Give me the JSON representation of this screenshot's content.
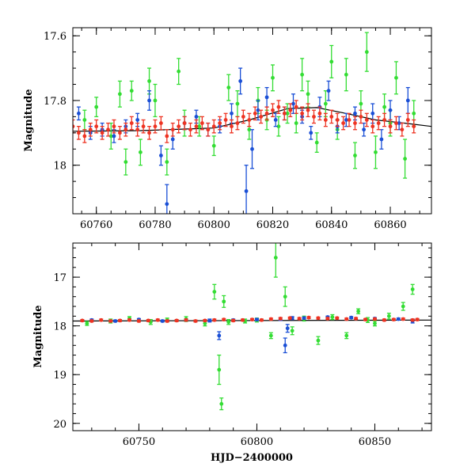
{
  "chart_data": [
    {
      "type": "scatter",
      "panel": "top",
      "xlabel": "",
      "ylabel": "Magnitude",
      "xlim": [
        60752,
        60874
      ],
      "ylim": [
        18.15,
        17.575
      ],
      "y_inverted": true,
      "xticks_major": [
        60760,
        60780,
        60800,
        60820,
        60840,
        60860
      ],
      "xtick_labels": [
        "60760",
        "60780",
        "60800",
        "60820",
        "60840",
        "60860"
      ],
      "yticks_major": [
        17.6,
        17.8,
        18.0
      ],
      "ytick_labels": [
        "17.6",
        "17.8",
        "18"
      ],
      "error_bars": true,
      "grid": false,
      "legend": "none",
      "trend_line": {
        "color": "#000000",
        "x": [
          60752,
          60775,
          60800,
          60812,
          60825,
          60835,
          60845,
          60855,
          60865,
          60874
        ],
        "y": [
          17.895,
          17.893,
          17.885,
          17.86,
          17.825,
          17.822,
          17.84,
          17.86,
          17.87,
          17.88
        ]
      },
      "series": [
        {
          "color": "#33dd33",
          "x": [
            60756,
            60760,
            60765,
            60768,
            60770,
            60772,
            60775,
            60778,
            60780,
            60784,
            60788,
            60790,
            60795,
            60800,
            60805,
            60808,
            60812,
            60815,
            60818,
            60820,
            60822,
            60825,
            60828,
            60830,
            60832,
            60835,
            60838,
            60840,
            60842,
            60845,
            60848,
            60850,
            60852,
            60855,
            60858,
            60860,
            60862,
            60865,
            60868
          ],
          "y": [
            17.86,
            17.82,
            17.91,
            17.78,
            17.99,
            17.77,
            17.96,
            17.74,
            17.8,
            17.99,
            17.71,
            17.87,
            17.88,
            17.94,
            17.76,
            17.81,
            17.89,
            17.8,
            17.86,
            17.73,
            17.88,
            17.84,
            17.87,
            17.72,
            17.78,
            17.93,
            17.81,
            17.68,
            17.89,
            17.72,
            17.97,
            17.81,
            17.65,
            17.96,
            17.82,
            17.87,
            17.73,
            17.98,
            17.84
          ],
          "err": [
            0.03,
            0.03,
            0.04,
            0.04,
            0.04,
            0.03,
            0.04,
            0.04,
            0.05,
            0.04,
            0.04,
            0.04,
            0.03,
            0.03,
            0.04,
            0.04,
            0.03,
            0.04,
            0.03,
            0.04,
            0.03,
            0.03,
            0.03,
            0.05,
            0.04,
            0.03,
            0.04,
            0.05,
            0.03,
            0.05,
            0.04,
            0.04,
            0.06,
            0.05,
            0.04,
            0.04,
            0.05,
            0.06,
            0.04
          ]
        },
        {
          "color": "#1a4fd6",
          "x": [
            60754,
            60758,
            60762,
            60766,
            60770,
            60774,
            60778,
            60782,
            60784,
            60786,
            60790,
            60794,
            60798,
            60802,
            60806,
            60809,
            60811,
            60813,
            60815,
            60818,
            60821,
            60824,
            60827,
            60830,
            60833,
            60836,
            60839,
            60842,
            60845,
            60848,
            60851,
            60854,
            60857,
            60860,
            60863,
            60866
          ],
          "y": [
            17.84,
            17.9,
            17.89,
            17.91,
            17.88,
            17.86,
            17.8,
            17.97,
            18.12,
            17.92,
            17.87,
            17.85,
            17.89,
            17.88,
            17.84,
            17.74,
            18.08,
            17.95,
            17.83,
            17.79,
            17.86,
            17.84,
            17.81,
            17.85,
            17.9,
            17.82,
            17.77,
            17.88,
            17.86,
            17.84,
            17.89,
            17.84,
            17.92,
            17.83,
            17.87,
            17.8
          ],
          "err": [
            0.02,
            0.02,
            0.02,
            0.02,
            0.02,
            0.02,
            0.03,
            0.03,
            0.06,
            0.03,
            0.02,
            0.02,
            0.02,
            0.02,
            0.03,
            0.04,
            0.08,
            0.06,
            0.03,
            0.03,
            0.02,
            0.02,
            0.03,
            0.02,
            0.02,
            0.03,
            0.03,
            0.02,
            0.02,
            0.02,
            0.02,
            0.03,
            0.03,
            0.03,
            0.02,
            0.04
          ]
        },
        {
          "color": "#ee3322",
          "x": [
            60752,
            60754,
            60756,
            60758,
            60760,
            60762,
            60764,
            60766,
            60768,
            60770,
            60772,
            60774,
            60776,
            60778,
            60780,
            60782,
            60784,
            60786,
            60788,
            60790,
            60792,
            60794,
            60796,
            60798,
            60800,
            60802,
            60804,
            60806,
            60808,
            60810,
            60812,
            60814,
            60816,
            60818,
            60820,
            60822,
            60824,
            60826,
            60828,
            60830,
            60832,
            60834,
            60836,
            60838,
            60840,
            60842,
            60844,
            60846,
            60848,
            60850,
            60852,
            60854,
            60856,
            60858,
            60860,
            60862,
            60864,
            60866,
            60868
          ],
          "y": [
            17.88,
            17.9,
            17.91,
            17.89,
            17.88,
            17.9,
            17.89,
            17.88,
            17.9,
            17.89,
            17.87,
            17.89,
            17.88,
            17.9,
            17.88,
            17.87,
            17.91,
            17.89,
            17.88,
            17.87,
            17.89,
            17.88,
            17.87,
            17.89,
            17.88,
            17.87,
            17.86,
            17.88,
            17.87,
            17.85,
            17.86,
            17.84,
            17.85,
            17.84,
            17.83,
            17.82,
            17.84,
            17.83,
            17.82,
            17.84,
            17.83,
            17.85,
            17.84,
            17.86,
            17.85,
            17.86,
            17.87,
            17.86,
            17.87,
            17.85,
            17.86,
            17.88,
            17.87,
            17.86,
            17.88,
            17.87,
            17.89,
            17.86,
            17.88
          ],
          "err": [
            0.02,
            0.02,
            0.02,
            0.02,
            0.02,
            0.02,
            0.02,
            0.02,
            0.02,
            0.02,
            0.02,
            0.02,
            0.02,
            0.02,
            0.02,
            0.02,
            0.02,
            0.02,
            0.02,
            0.02,
            0.02,
            0.02,
            0.02,
            0.02,
            0.02,
            0.02,
            0.02,
            0.02,
            0.02,
            0.02,
            0.02,
            0.02,
            0.02,
            0.02,
            0.02,
            0.02,
            0.02,
            0.02,
            0.02,
            0.02,
            0.02,
            0.02,
            0.02,
            0.02,
            0.02,
            0.02,
            0.02,
            0.02,
            0.02,
            0.02,
            0.02,
            0.02,
            0.02,
            0.02,
            0.02,
            0.02,
            0.02,
            0.02,
            0.02
          ]
        }
      ]
    },
    {
      "type": "scatter",
      "panel": "bottom",
      "xlabel": "HJD−2400000",
      "ylabel": "Magnitude",
      "xlim": [
        60722,
        60874
      ],
      "ylim": [
        20.15,
        16.3
      ],
      "y_inverted": true,
      "xticks_major": [
        60750,
        60800,
        60850
      ],
      "xtick_labels": [
        "60750",
        "60800",
        "60850"
      ],
      "yticks_major": [
        17,
        18,
        19,
        20
      ],
      "ytick_labels": [
        "17",
        "18",
        "19",
        "20"
      ],
      "error_bars": true,
      "grid": false,
      "legend": "none",
      "trend_line": {
        "color": "#000000",
        "x": [
          60722,
          60874
        ],
        "y": [
          17.9,
          17.88
        ]
      },
      "series": [
        {
          "color": "#33dd33",
          "x": [
            60728,
            60738,
            60746,
            60755,
            60762,
            60770,
            60778,
            60782,
            60784,
            60785,
            60786,
            60788,
            60795,
            60800,
            60806,
            60808,
            60812,
            60815,
            60820,
            60826,
            60832,
            60838,
            60843,
            60847,
            60850,
            60856,
            60862,
            60866
          ],
          "y": [
            17.95,
            17.9,
            17.85,
            17.92,
            17.88,
            17.86,
            17.95,
            17.3,
            18.9,
            19.6,
            17.5,
            17.92,
            17.9,
            17.88,
            18.2,
            16.6,
            17.4,
            18.1,
            17.85,
            18.3,
            17.82,
            18.2,
            17.7,
            17.88,
            17.95,
            17.8,
            17.6,
            17.25
          ],
          "err": [
            0.04,
            0.04,
            0.04,
            0.05,
            0.04,
            0.05,
            0.05,
            0.15,
            0.3,
            0.12,
            0.12,
            0.05,
            0.04,
            0.04,
            0.06,
            0.4,
            0.2,
            0.08,
            0.05,
            0.08,
            0.05,
            0.06,
            0.05,
            0.05,
            0.05,
            0.06,
            0.08,
            0.1
          ]
        },
        {
          "color": "#1a4fd6",
          "x": [
            60730,
            60740,
            60750,
            60760,
            60770,
            60780,
            60784,
            60790,
            60800,
            60810,
            60812,
            60813,
            60815,
            60820,
            60830,
            60840,
            60850,
            60860,
            60866
          ],
          "y": [
            17.88,
            17.9,
            17.87,
            17.9,
            17.88,
            17.89,
            18.2,
            17.88,
            17.87,
            17.86,
            18.4,
            18.05,
            17.84,
            17.84,
            17.82,
            17.83,
            17.85,
            17.86,
            17.9
          ],
          "err": [
            0.02,
            0.02,
            0.02,
            0.02,
            0.02,
            0.03,
            0.08,
            0.02,
            0.02,
            0.03,
            0.15,
            0.08,
            0.03,
            0.02,
            0.02,
            0.02,
            0.02,
            0.02,
            0.04
          ]
        },
        {
          "color": "#ee3322",
          "x": [
            60726,
            60730,
            60734,
            60738,
            60742,
            60746,
            60750,
            60754,
            60758,
            60762,
            60766,
            60770,
            60774,
            60778,
            60782,
            60786,
            60790,
            60794,
            60798,
            60802,
            60806,
            60810,
            60814,
            60818,
            60822,
            60826,
            60830,
            60834,
            60838,
            60842,
            60846,
            60850,
            60854,
            60858,
            60862,
            60866,
            60868
          ],
          "y": [
            17.89,
            17.9,
            17.88,
            17.9,
            17.89,
            17.88,
            17.9,
            17.89,
            17.88,
            17.9,
            17.89,
            17.88,
            17.9,
            17.89,
            17.88,
            17.87,
            17.89,
            17.88,
            17.87,
            17.88,
            17.86,
            17.85,
            17.84,
            17.85,
            17.83,
            17.84,
            17.85,
            17.84,
            17.86,
            17.85,
            17.87,
            17.86,
            17.88,
            17.87,
            17.86,
            17.88,
            17.87
          ],
          "err": [
            0.02,
            0.02,
            0.02,
            0.02,
            0.02,
            0.02,
            0.02,
            0.02,
            0.02,
            0.02,
            0.02,
            0.02,
            0.02,
            0.02,
            0.02,
            0.02,
            0.02,
            0.02,
            0.02,
            0.02,
            0.02,
            0.02,
            0.02,
            0.02,
            0.02,
            0.02,
            0.02,
            0.02,
            0.02,
            0.02,
            0.02,
            0.02,
            0.02,
            0.02,
            0.02,
            0.02,
            0.02
          ]
        }
      ]
    }
  ]
}
